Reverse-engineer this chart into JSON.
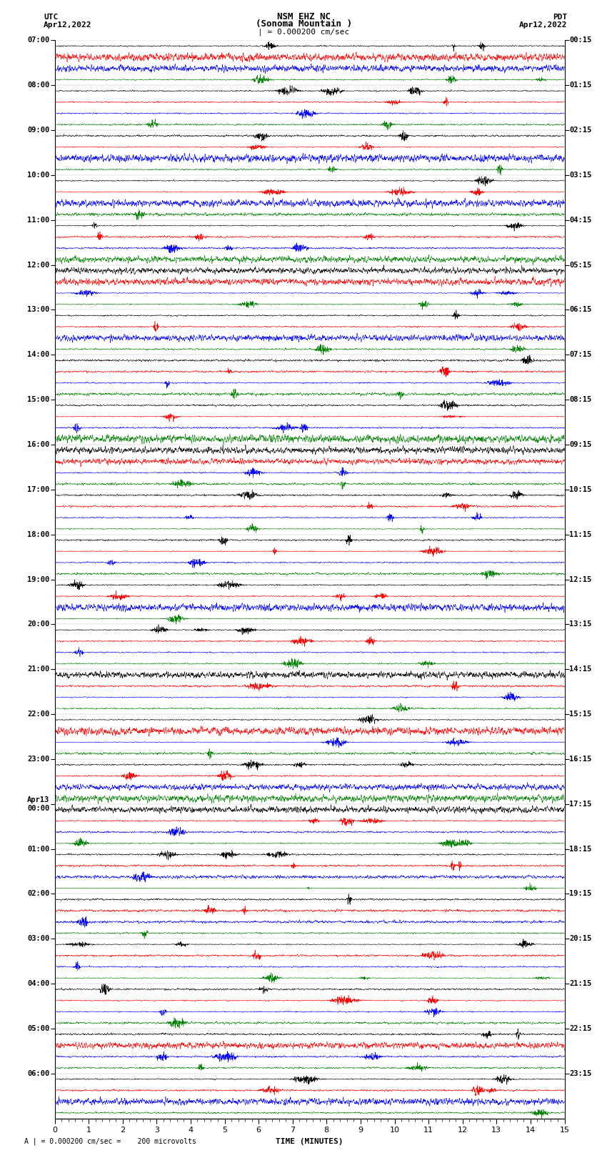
{
  "title_line1": "NSM EHZ NC",
  "title_line2": "(Sonoma Mountain )",
  "title_line3": "| = 0.000200 cm/sec",
  "label_utc": "UTC",
  "label_pdt": "PDT",
  "date_left": "Apr12,2022",
  "date_right": "Apr12,2022",
  "xlabel": "TIME (MINUTES)",
  "footnote": "A | = 0.000200 cm/sec =    200 microvolts",
  "utc_labels": [
    "07:00",
    "08:00",
    "09:00",
    "10:00",
    "11:00",
    "12:00",
    "13:00",
    "14:00",
    "15:00",
    "16:00",
    "17:00",
    "18:00",
    "19:00",
    "20:00",
    "21:00",
    "22:00",
    "23:00",
    "Apr13\n00:00",
    "01:00",
    "02:00",
    "03:00",
    "04:00",
    "05:00",
    "06:00"
  ],
  "pdt_labels": [
    "00:15",
    "01:15",
    "02:15",
    "03:15",
    "04:15",
    "05:15",
    "06:15",
    "07:15",
    "08:15",
    "09:15",
    "10:15",
    "11:15",
    "12:15",
    "13:15",
    "14:15",
    "15:15",
    "16:15",
    "17:15",
    "18:15",
    "19:15",
    "20:15",
    "21:15",
    "22:15",
    "23:15"
  ],
  "num_groups": 24,
  "traces_per_group": 4,
  "colors": [
    "black",
    "red",
    "blue",
    "green"
  ],
  "bg_color": "white",
  "xlim": [
    0,
    15
  ],
  "xticks": [
    0,
    1,
    2,
    3,
    4,
    5,
    6,
    7,
    8,
    9,
    10,
    11,
    12,
    13,
    14,
    15
  ],
  "noise_seed": 42
}
